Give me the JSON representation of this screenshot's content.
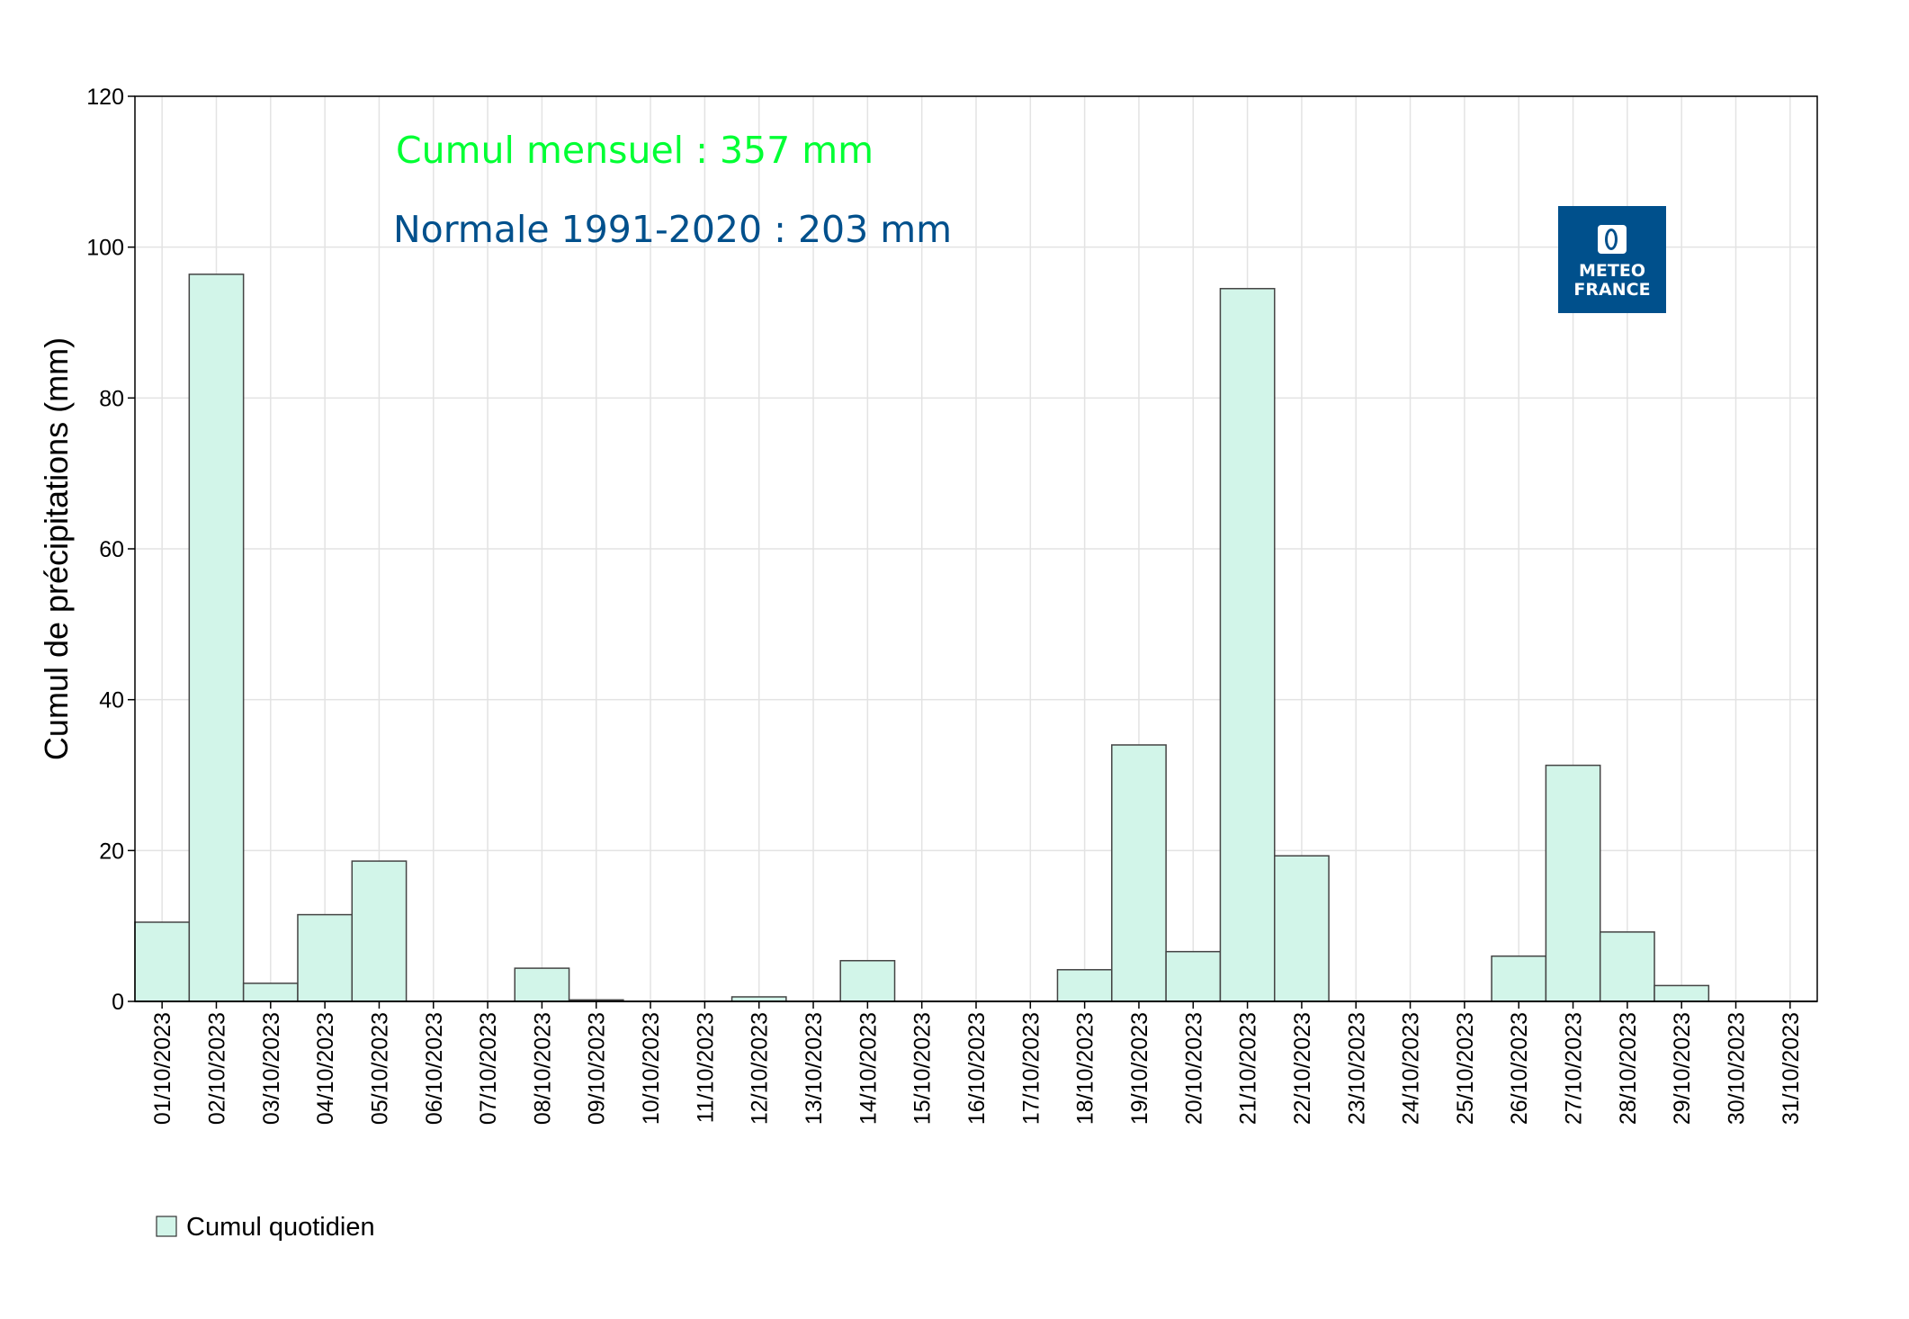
{
  "chart_data": {
    "type": "bar",
    "ylabel": "Cumul de précipitations (mm)",
    "xlabel": "",
    "ylim": [
      0,
      120
    ],
    "yticks": [
      0,
      20,
      40,
      60,
      80,
      100,
      120
    ],
    "grid": true,
    "legend_placement": "bottom-left",
    "categories": [
      "01/10/2023",
      "02/10/2023",
      "03/10/2023",
      "04/10/2023",
      "05/10/2023",
      "06/10/2023",
      "07/10/2023",
      "08/10/2023",
      "09/10/2023",
      "10/10/2023",
      "11/10/2023",
      "12/10/2023",
      "13/10/2023",
      "14/10/2023",
      "15/10/2023",
      "16/10/2023",
      "17/10/2023",
      "18/10/2023",
      "19/10/2023",
      "20/10/2023",
      "21/10/2023",
      "22/10/2023",
      "23/10/2023",
      "24/10/2023",
      "25/10/2023",
      "26/10/2023",
      "27/10/2023",
      "28/10/2023",
      "29/10/2023",
      "30/10/2023",
      "31/10/2023"
    ],
    "series": [
      {
        "name": "Cumul quotidien",
        "color": "#d2f5e9",
        "values": [
          10.5,
          96.4,
          2.4,
          11.5,
          18.6,
          0,
          0,
          4.4,
          0.2,
          0,
          0,
          0.6,
          0,
          5.4,
          0,
          0,
          0,
          4.2,
          34.0,
          6.6,
          94.5,
          19.3,
          0,
          0,
          0,
          6.0,
          31.3,
          9.2,
          2.1,
          0,
          0
        ]
      }
    ],
    "annotations": [
      {
        "text": "Cumul mensuel : 357 mm",
        "color": "#00ff33"
      },
      {
        "text": "Normale 1991-2020 : 203 mm",
        "color": "#00508c"
      }
    ]
  },
  "logo": {
    "line1": "METEO",
    "line2": "FRANCE",
    "color": "#00508c"
  }
}
